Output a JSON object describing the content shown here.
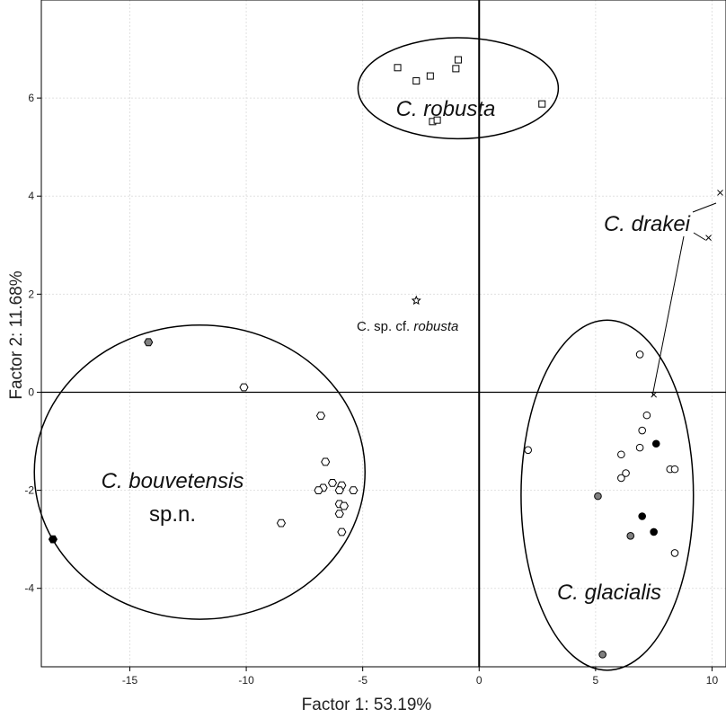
{
  "chart_data": {
    "type": "scatter",
    "xlabel": "Factor 1: 53.19%",
    "ylabel": "Factor 2: 11.68%",
    "xlim": [
      -18.8,
      10.6
    ],
    "ylim": [
      -5.6,
      8.0
    ],
    "xticks": [
      -15,
      -10,
      -5,
      0,
      5,
      10
    ],
    "xtick_labels": [
      "-15",
      "-10",
      "-5",
      "0",
      "5",
      "10"
    ],
    "yticks": [
      -4,
      -2,
      0,
      2,
      4,
      6
    ],
    "ytick_labels": [
      "-4",
      "-2",
      "0",
      "2",
      "4",
      "6"
    ],
    "grid": true,
    "series": [
      {
        "marker": "square",
        "points": [
          [
            -3.5,
            6.62
          ],
          [
            -2.7,
            6.35
          ],
          [
            -2.1,
            6.45
          ],
          [
            -0.9,
            6.78
          ],
          [
            -1.0,
            6.6
          ],
          [
            -2.0,
            5.52
          ],
          [
            -1.8,
            5.55
          ],
          [
            2.7,
            5.88
          ]
        ]
      },
      {
        "marker": "star",
        "points": [
          [
            -2.7,
            1.87
          ]
        ]
      },
      {
        "marker": "cross",
        "points": [
          [
            10.35,
            4.07
          ],
          [
            9.85,
            3.15
          ],
          [
            7.5,
            -0.05
          ]
        ]
      },
      {
        "marker": "hexagon-open",
        "points": [
          [
            -10.1,
            0.1
          ],
          [
            -6.8,
            -0.48
          ],
          [
            -6.6,
            -1.42
          ],
          [
            -6.3,
            -1.85
          ],
          [
            -6.7,
            -1.95
          ],
          [
            -6.9,
            -2.0
          ],
          [
            -5.9,
            -1.9
          ],
          [
            -6.0,
            -2.0
          ],
          [
            -5.4,
            -2.0
          ],
          [
            -6.0,
            -2.28
          ],
          [
            -5.8,
            -2.32
          ],
          [
            -6.0,
            -2.48
          ],
          [
            -8.5,
            -2.67
          ],
          [
            -5.9,
            -2.85
          ]
        ]
      },
      {
        "marker": "hexagon-gray",
        "points": [
          [
            -14.2,
            1.02
          ]
        ]
      },
      {
        "marker": "hexagon-black",
        "points": [
          [
            -18.3,
            -3.0
          ]
        ]
      },
      {
        "marker": "circle-open",
        "points": [
          [
            6.9,
            0.77
          ],
          [
            7.2,
            -0.47
          ],
          [
            7.0,
            -0.78
          ],
          [
            2.1,
            -1.18
          ],
          [
            6.9,
            -1.13
          ],
          [
            6.1,
            -1.27
          ],
          [
            6.1,
            -1.75
          ],
          [
            6.3,
            -1.65
          ],
          [
            8.2,
            -1.57
          ],
          [
            8.4,
            -1.57
          ],
          [
            8.4,
            -3.28
          ]
        ]
      },
      {
        "marker": "circle-gray",
        "points": [
          [
            5.1,
            -2.12
          ],
          [
            6.5,
            -2.93
          ],
          [
            5.3,
            -5.35
          ]
        ]
      },
      {
        "marker": "circle-black",
        "points": [
          [
            7.6,
            -1.05
          ],
          [
            7.0,
            -2.53
          ],
          [
            7.5,
            -2.85
          ]
        ]
      }
    ],
    "ellipses": [
      {
        "name": "C. robusta",
        "cx": -0.9,
        "cy": 6.2,
        "rx": 4.3,
        "ry": 1.03
      },
      {
        "name": "C. bouvetensis sp.n.",
        "cx": -12.0,
        "cy": -1.63,
        "rx": 7.1,
        "ry": 3.0
      },
      {
        "name": "C. glacialis",
        "cx": 5.5,
        "cy": -2.1,
        "rx": 3.7,
        "ry": 3.57
      }
    ],
    "annotations": {
      "robusta": "C. robusta",
      "cf_prefix": "C. sp. cf. ",
      "cf_italic": "robusta",
      "drakei": "C. drakei",
      "bouvetensis": "C. bouvetensis",
      "bouvetensis_sp": "sp.n.",
      "glacialis": "C. glacialis"
    }
  }
}
